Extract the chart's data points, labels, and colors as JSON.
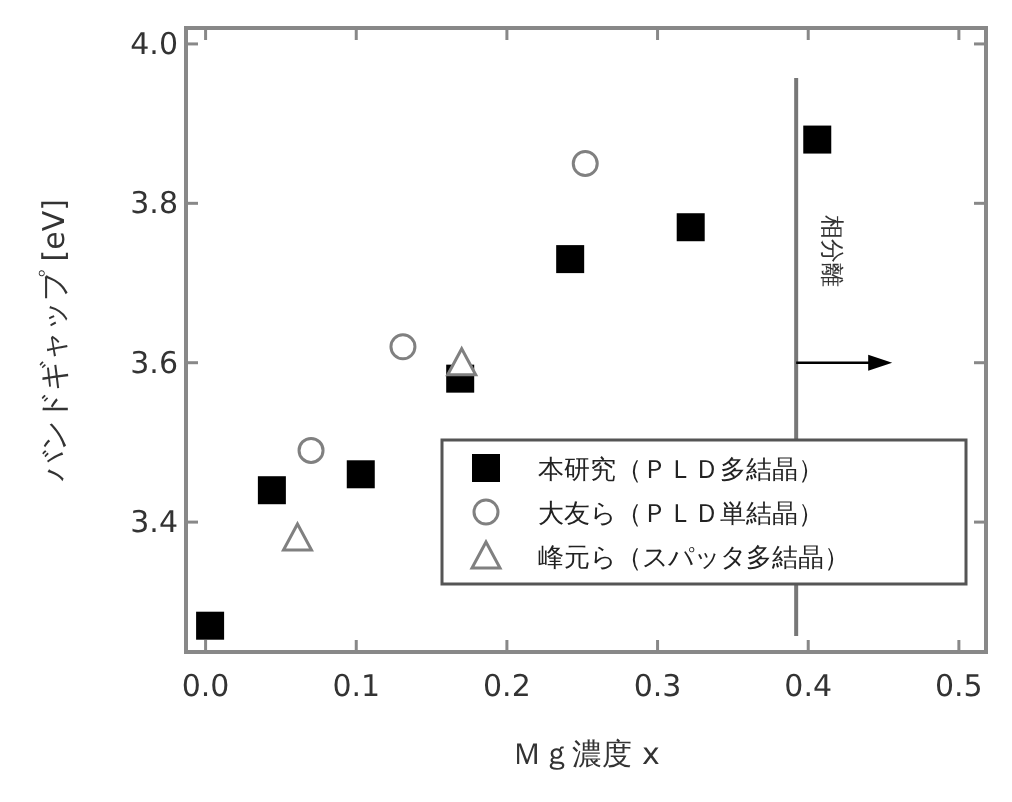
{
  "chart_data": {
    "type": "scatter",
    "xlabel": "Ｍｇ濃度 x",
    "ylabel": "バンドギャップ [eV]",
    "xlim": [
      -0.013,
      0.518
    ],
    "ylim": [
      3.237,
      4.02
    ],
    "xticks": [
      {
        "value": 0,
        "label": "0.0"
      },
      0.1,
      0.2,
      0.3,
      0.4,
      0.5
    ],
    "yticks": [
      3.4,
      3.6,
      3.8,
      {
        "value": 4,
        "label": "4.0"
      }
    ],
    "grid": false,
    "legend": "bottom right",
    "series": [
      {
        "name": "本研究（ＰＬＤ多結晶）",
        "color": "#000000",
        "marker": "square",
        "x": [
          0.003,
          0.044,
          0.103,
          0.169,
          0.242,
          0.322,
          0.406
        ],
        "values": [
          3.27,
          3.44,
          3.46,
          3.58,
          3.73,
          3.77,
          3.88
        ]
      },
      {
        "name": "大友ら（ＰＬＤ単結晶）",
        "color": "#808080",
        "marker": "circle",
        "x": [
          0.07,
          0.131,
          0.252
        ],
        "values": [
          3.49,
          3.62,
          3.85
        ]
      },
      {
        "name": "峰元ら（スパッタ多結晶）",
        "color": "#808080",
        "marker": "triangle",
        "x": [
          0.061,
          0.17
        ],
        "values": [
          3.38,
          3.6
        ]
      }
    ],
    "ref_lines": [
      {
        "axis": "x",
        "value": 0.392,
        "label": "相分離",
        "color": "#777777"
      }
    ]
  }
}
